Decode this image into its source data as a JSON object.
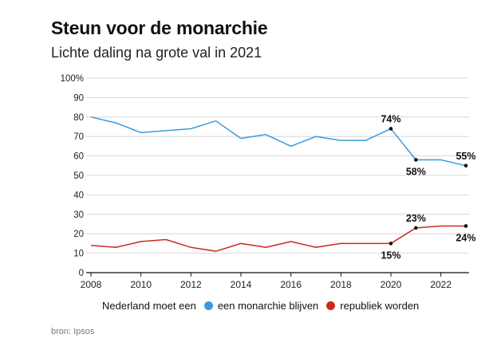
{
  "title": "Steun voor de monarchie",
  "subtitle": "Lichte daling na grote val in 2021",
  "source": "bron: Ipsos",
  "legend": {
    "prefix": "Nederland moet een",
    "items": [
      {
        "label": "een monarchie blijven",
        "color": "#3a9bdc"
      },
      {
        "label": "republiek worden",
        "color": "#cc2a1d"
      }
    ]
  },
  "chart_data": {
    "type": "line",
    "x": [
      2008,
      2009,
      2010,
      2011,
      2012,
      2013,
      2014,
      2015,
      2016,
      2017,
      2018,
      2019,
      2020,
      2021,
      2022,
      2023
    ],
    "series": [
      {
        "name": "een monarchie blijven",
        "color": "#3a9bdc",
        "values": [
          80,
          77,
          72,
          73,
          74,
          78,
          69,
          71,
          65,
          70,
          68,
          68,
          74,
          58,
          58,
          55
        ]
      },
      {
        "name": "republiek worden",
        "color": "#cc2a1d",
        "values": [
          14,
          13,
          16,
          17,
          13,
          11,
          15,
          13,
          16,
          13,
          15,
          15,
          15,
          23,
          24,
          24
        ]
      }
    ],
    "x_ticks": [
      "2008",
      "2010",
      "2012",
      "2014",
      "2016",
      "2018",
      "2020",
      "2022"
    ],
    "y_ticks": [
      "0",
      "10",
      "20",
      "30",
      "40",
      "50",
      "60",
      "70",
      "80",
      "90",
      "100%"
    ],
    "ylim": [
      0,
      100
    ],
    "xlim": [
      2008,
      2023
    ],
    "grid": true,
    "annotations": [
      {
        "series": 0,
        "x": 2020,
        "text": "74%",
        "pos": "above"
      },
      {
        "series": 0,
        "x": 2021,
        "text": "58%",
        "pos": "below"
      },
      {
        "series": 0,
        "x": 2023,
        "text": "55%",
        "pos": "above"
      },
      {
        "series": 1,
        "x": 2020,
        "text": "15%",
        "pos": "below"
      },
      {
        "series": 1,
        "x": 2021,
        "text": "23%",
        "pos": "above"
      },
      {
        "series": 1,
        "x": 2023,
        "text": "24%",
        "pos": "below"
      }
    ]
  }
}
